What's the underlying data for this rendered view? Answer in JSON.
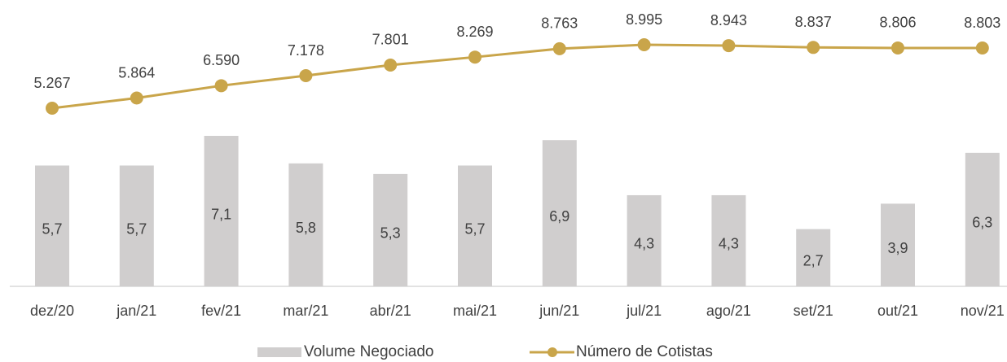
{
  "chart_data": {
    "type": "combo",
    "categories": [
      "dez/20",
      "jan/21",
      "fev/21",
      "mar/21",
      "abr/21",
      "mai/21",
      "jun/21",
      "jul/21",
      "ago/21",
      "set/21",
      "out/21",
      "nov/21"
    ],
    "series": [
      {
        "name": "Volume Negociado",
        "type": "bar",
        "color": "#d0cece",
        "values": [
          5.7,
          5.7,
          7.1,
          5.8,
          5.3,
          5.7,
          6.9,
          4.3,
          4.3,
          2.7,
          3.9,
          6.3
        ],
        "value_labels": [
          "5,7",
          "5,7",
          "7,1",
          "5,8",
          "5,3",
          "5,7",
          "6,9",
          "4,3",
          "4,3",
          "2,7",
          "3,9",
          "6,3"
        ]
      },
      {
        "name": "Número de Cotistas",
        "type": "line",
        "axis": "y2",
        "color": "#c9a54a",
        "values": [
          5267,
          5864,
          6590,
          7178,
          7801,
          8269,
          8763,
          8995,
          8943,
          8837,
          8806,
          8803
        ],
        "value_labels": [
          "5.267",
          "5.864",
          "6.590",
          "7.178",
          "7.801",
          "8.269",
          "8.763",
          "8.995",
          "8.943",
          "8.837",
          "8.806",
          "8.803"
        ]
      }
    ],
    "legend": "bottom"
  }
}
